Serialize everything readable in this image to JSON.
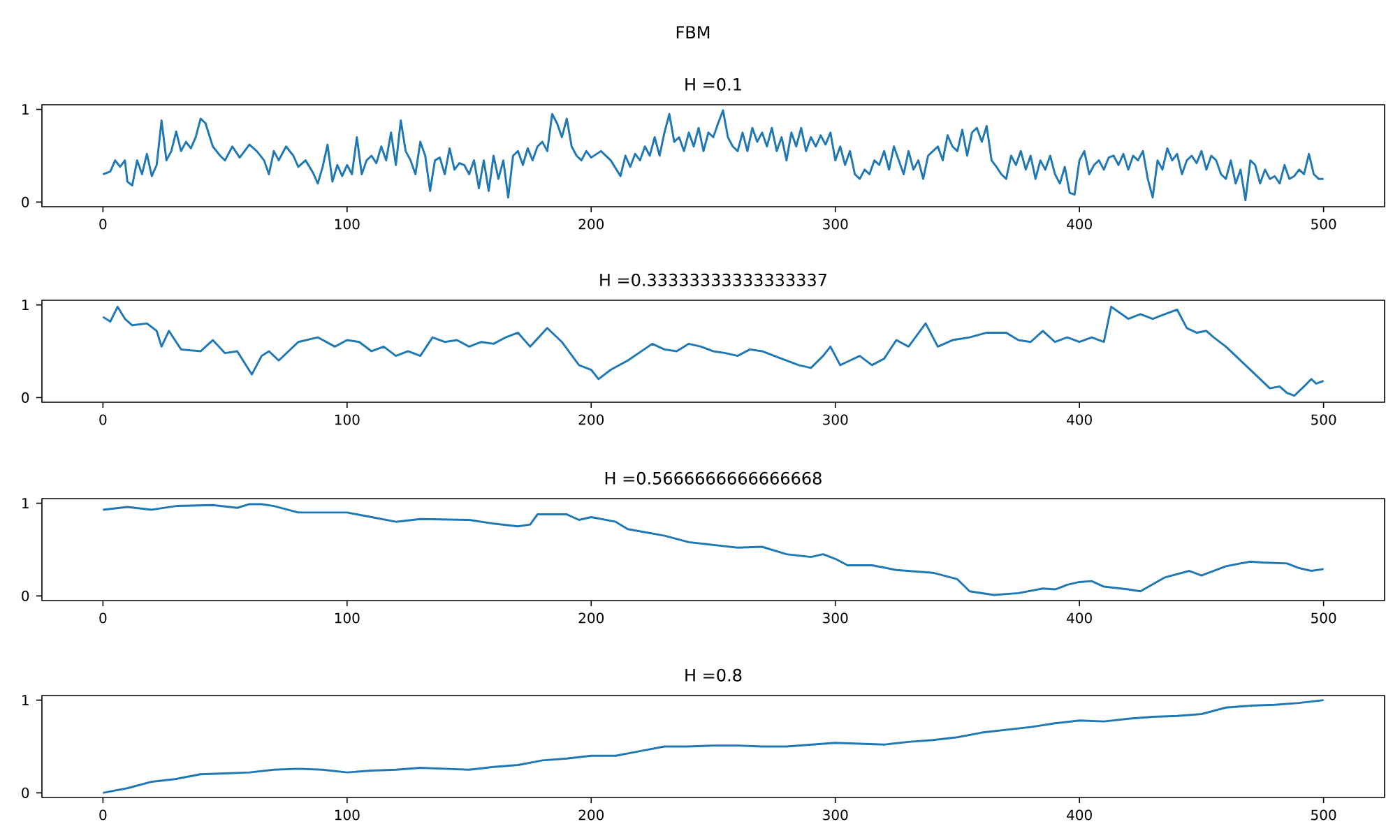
{
  "chart_data": [
    {
      "type": "line",
      "title": "FBM",
      "subtitle": "H =0.1",
      "color": "#1f77b4",
      "xlim": [
        -25,
        525
      ],
      "ylim": [
        -0.05,
        1.05
      ],
      "xticks": [
        0,
        100,
        200,
        300,
        400,
        500
      ],
      "yticks": [
        0,
        1
      ],
      "x": [
        0,
        3,
        5,
        7,
        9,
        10,
        12,
        14,
        16,
        18,
        20,
        22,
        24,
        26,
        28,
        30,
        32,
        34,
        36,
        38,
        40,
        42,
        45,
        48,
        50,
        53,
        56,
        60,
        63,
        66,
        68,
        70,
        72,
        75,
        78,
        80,
        83,
        86,
        88,
        90,
        92,
        94,
        96,
        98,
        100,
        102,
        104,
        106,
        108,
        110,
        112,
        114,
        116,
        118,
        120,
        122,
        124,
        126,
        128,
        130,
        132,
        134,
        136,
        138,
        140,
        142,
        144,
        146,
        148,
        150,
        152,
        154,
        156,
        158,
        160,
        162,
        164,
        166,
        168,
        170,
        172,
        174,
        176,
        178,
        180,
        182,
        184,
        186,
        188,
        190,
        192,
        194,
        196,
        198,
        200,
        204,
        208,
        212,
        214,
        216,
        218,
        220,
        222,
        224,
        226,
        228,
        230,
        232,
        234,
        236,
        238,
        240,
        242,
        244,
        246,
        248,
        250,
        252,
        254,
        256,
        258,
        260,
        262,
        264,
        266,
        268,
        270,
        272,
        274,
        276,
        278,
        280,
        282,
        284,
        286,
        288,
        290,
        292,
        294,
        296,
        298,
        300,
        302,
        304,
        306,
        308,
        310,
        312,
        314,
        316,
        318,
        320,
        322,
        324,
        326,
        328,
        330,
        332,
        334,
        336,
        338,
        340,
        342,
        344,
        346,
        348,
        350,
        352,
        354,
        356,
        358,
        360,
        362,
        364,
        366,
        368,
        370,
        372,
        374,
        376,
        378,
        380,
        382,
        384,
        386,
        388,
        390,
        392,
        394,
        396,
        398,
        400,
        402,
        404,
        406,
        408,
        410,
        412,
        414,
        416,
        418,
        420,
        422,
        424,
        426,
        428,
        430,
        432,
        434,
        436,
        438,
        440,
        442,
        444,
        446,
        448,
        450,
        452,
        454,
        456,
        458,
        460,
        462,
        464,
        466,
        468,
        470,
        472,
        474,
        476,
        478,
        480,
        482,
        484,
        486,
        488,
        490,
        492,
        494,
        496,
        498,
        500
      ],
      "values": [
        0.3,
        0.33,
        0.45,
        0.38,
        0.45,
        0.22,
        0.18,
        0.45,
        0.3,
        0.52,
        0.28,
        0.4,
        0.88,
        0.45,
        0.55,
        0.76,
        0.55,
        0.65,
        0.58,
        0.7,
        0.9,
        0.85,
        0.6,
        0.5,
        0.45,
        0.6,
        0.48,
        0.62,
        0.55,
        0.45,
        0.3,
        0.55,
        0.45,
        0.6,
        0.5,
        0.38,
        0.45,
        0.32,
        0.2,
        0.38,
        0.62,
        0.22,
        0.4,
        0.28,
        0.4,
        0.3,
        0.7,
        0.3,
        0.45,
        0.5,
        0.42,
        0.6,
        0.45,
        0.75,
        0.4,
        0.88,
        0.55,
        0.45,
        0.3,
        0.65,
        0.5,
        0.12,
        0.45,
        0.48,
        0.3,
        0.58,
        0.35,
        0.42,
        0.4,
        0.3,
        0.45,
        0.15,
        0.45,
        0.12,
        0.5,
        0.25,
        0.45,
        0.05,
        0.5,
        0.55,
        0.4,
        0.58,
        0.45,
        0.6,
        0.65,
        0.55,
        0.95,
        0.85,
        0.7,
        0.9,
        0.6,
        0.5,
        0.45,
        0.55,
        0.48,
        0.55,
        0.45,
        0.28,
        0.5,
        0.38,
        0.52,
        0.45,
        0.6,
        0.5,
        0.7,
        0.5,
        0.75,
        0.95,
        0.65,
        0.7,
        0.55,
        0.75,
        0.6,
        0.8,
        0.55,
        0.75,
        0.7,
        0.85,
        0.99,
        0.7,
        0.6,
        0.55,
        0.75,
        0.55,
        0.8,
        0.65,
        0.75,
        0.6,
        0.8,
        0.55,
        0.7,
        0.45,
        0.75,
        0.6,
        0.8,
        0.55,
        0.7,
        0.6,
        0.72,
        0.62,
        0.75,
        0.45,
        0.6,
        0.4,
        0.55,
        0.3,
        0.25,
        0.35,
        0.3,
        0.45,
        0.4,
        0.55,
        0.35,
        0.6,
        0.45,
        0.3,
        0.55,
        0.35,
        0.45,
        0.25,
        0.5,
        0.55,
        0.6,
        0.45,
        0.72,
        0.6,
        0.55,
        0.78,
        0.5,
        0.75,
        0.8,
        0.65,
        0.82,
        0.45,
        0.38,
        0.3,
        0.25,
        0.5,
        0.4,
        0.55,
        0.35,
        0.5,
        0.25,
        0.45,
        0.35,
        0.5,
        0.3,
        0.2,
        0.38,
        0.1,
        0.08,
        0.45,
        0.55,
        0.3,
        0.4,
        0.45,
        0.35,
        0.48,
        0.5,
        0.4,
        0.52,
        0.35,
        0.5,
        0.45,
        0.55,
        0.25,
        0.05,
        0.45,
        0.35,
        0.58,
        0.45,
        0.52,
        0.3,
        0.45,
        0.5,
        0.42,
        0.55,
        0.35,
        0.5,
        0.45,
        0.3,
        0.25,
        0.45,
        0.2,
        0.35,
        0.02,
        0.45,
        0.4,
        0.2,
        0.35,
        0.25,
        0.28,
        0.2,
        0.4,
        0.25,
        0.28,
        0.35,
        0.3,
        0.52,
        0.3,
        0.25,
        0.25
      ]
    },
    {
      "type": "line",
      "title": "H =0.33333333333333337",
      "color": "#1f77b4",
      "xlim": [
        -25,
        525
      ],
      "ylim": [
        -0.05,
        1.05
      ],
      "xticks": [
        0,
        100,
        200,
        300,
        400,
        500
      ],
      "yticks": [
        0,
        1
      ],
      "x": [
        0,
        3,
        6,
        9,
        12,
        18,
        22,
        24,
        27,
        32,
        40,
        45,
        50,
        55,
        61,
        65,
        68,
        72,
        80,
        88,
        95,
        100,
        105,
        110,
        115,
        120,
        125,
        130,
        135,
        140,
        145,
        150,
        155,
        160,
        165,
        170,
        175,
        182,
        188,
        195,
        200,
        203,
        208,
        215,
        225,
        230,
        235,
        240,
        245,
        250,
        255,
        260,
        265,
        270,
        278,
        285,
        290,
        295,
        298,
        302,
        306,
        310,
        315,
        320,
        325,
        330,
        337,
        342,
        348,
        355,
        362,
        370,
        375,
        380,
        385,
        390,
        395,
        400,
        405,
        410,
        413,
        420,
        425,
        430,
        435,
        440,
        444,
        448,
        452,
        455,
        460,
        464,
        468,
        472,
        478,
        482,
        485,
        488,
        492,
        495,
        497,
        500
      ],
      "values": [
        0.87,
        0.82,
        0.98,
        0.85,
        0.78,
        0.8,
        0.72,
        0.55,
        0.72,
        0.52,
        0.5,
        0.62,
        0.48,
        0.5,
        0.25,
        0.45,
        0.5,
        0.4,
        0.6,
        0.65,
        0.55,
        0.62,
        0.6,
        0.5,
        0.55,
        0.45,
        0.5,
        0.45,
        0.65,
        0.6,
        0.62,
        0.55,
        0.6,
        0.58,
        0.65,
        0.7,
        0.55,
        0.75,
        0.6,
        0.35,
        0.3,
        0.2,
        0.3,
        0.4,
        0.58,
        0.52,
        0.5,
        0.58,
        0.55,
        0.5,
        0.48,
        0.45,
        0.52,
        0.5,
        0.42,
        0.35,
        0.32,
        0.45,
        0.55,
        0.35,
        0.4,
        0.45,
        0.35,
        0.42,
        0.62,
        0.55,
        0.8,
        0.55,
        0.62,
        0.65,
        0.7,
        0.7,
        0.62,
        0.6,
        0.72,
        0.6,
        0.65,
        0.6,
        0.65,
        0.6,
        0.98,
        0.85,
        0.9,
        0.85,
        0.9,
        0.95,
        0.75,
        0.7,
        0.72,
        0.65,
        0.55,
        0.45,
        0.35,
        0.25,
        0.1,
        0.12,
        0.05,
        0.02,
        0.12,
        0.2,
        0.15,
        0.18
      ]
    },
    {
      "type": "line",
      "title": "H =0.5666666666666668",
      "color": "#1f77b4",
      "xlim": [
        -25,
        525
      ],
      "ylim": [
        -0.05,
        1.05
      ],
      "xticks": [
        0,
        100,
        200,
        300,
        400,
        500
      ],
      "yticks": [
        0,
        1
      ],
      "x": [
        0,
        10,
        20,
        30,
        45,
        55,
        60,
        65,
        70,
        80,
        100,
        110,
        120,
        130,
        150,
        160,
        170,
        175,
        178,
        190,
        195,
        200,
        210,
        215,
        230,
        240,
        250,
        260,
        270,
        280,
        290,
        295,
        300,
        305,
        315,
        325,
        340,
        350,
        355,
        365,
        375,
        385,
        390,
        395,
        400,
        405,
        410,
        420,
        425,
        435,
        445,
        450,
        460,
        470,
        475,
        485,
        490,
        495,
        500
      ],
      "values": [
        0.93,
        0.96,
        0.93,
        0.97,
        0.98,
        0.95,
        0.99,
        0.99,
        0.97,
        0.9,
        0.9,
        0.85,
        0.8,
        0.83,
        0.82,
        0.78,
        0.75,
        0.77,
        0.88,
        0.88,
        0.82,
        0.85,
        0.8,
        0.72,
        0.65,
        0.58,
        0.55,
        0.52,
        0.53,
        0.45,
        0.42,
        0.45,
        0.4,
        0.33,
        0.33,
        0.28,
        0.25,
        0.18,
        0.05,
        0.01,
        0.03,
        0.08,
        0.07,
        0.12,
        0.15,
        0.16,
        0.1,
        0.07,
        0.05,
        0.2,
        0.27,
        0.22,
        0.32,
        0.37,
        0.36,
        0.35,
        0.3,
        0.27,
        0.29
      ]
    },
    {
      "type": "line",
      "title": "H =0.8",
      "color": "#1f77b4",
      "xlim": [
        -25,
        525
      ],
      "ylim": [
        -0.05,
        1.05
      ],
      "xticks": [
        0,
        100,
        200,
        300,
        400,
        500
      ],
      "yticks": [
        0,
        1
      ],
      "x": [
        0,
        10,
        20,
        30,
        40,
        50,
        60,
        70,
        80,
        90,
        100,
        110,
        120,
        130,
        140,
        150,
        160,
        170,
        180,
        190,
        200,
        210,
        220,
        230,
        240,
        250,
        260,
        270,
        280,
        290,
        300,
        310,
        320,
        330,
        340,
        350,
        360,
        370,
        380,
        390,
        400,
        410,
        420,
        430,
        440,
        450,
        460,
        470,
        480,
        490,
        500
      ],
      "values": [
        0,
        0.05,
        0.12,
        0.15,
        0.2,
        0.21,
        0.22,
        0.25,
        0.26,
        0.25,
        0.22,
        0.24,
        0.25,
        0.27,
        0.26,
        0.25,
        0.28,
        0.3,
        0.35,
        0.37,
        0.4,
        0.4,
        0.45,
        0.5,
        0.5,
        0.51,
        0.51,
        0.5,
        0.5,
        0.52,
        0.54,
        0.53,
        0.52,
        0.55,
        0.57,
        0.6,
        0.65,
        0.68,
        0.71,
        0.75,
        0.78,
        0.77,
        0.8,
        0.82,
        0.83,
        0.85,
        0.92,
        0.94,
        0.95,
        0.97,
        1.0
      ]
    }
  ]
}
